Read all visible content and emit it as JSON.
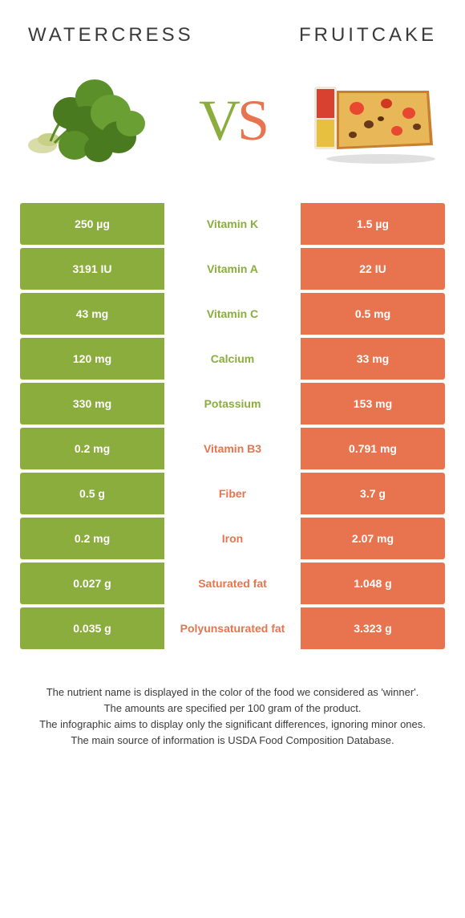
{
  "colors": {
    "left_bg": "#8aad3e",
    "right_bg": "#e8744f",
    "left_text": "#8aad3e",
    "right_text": "#e8744f",
    "header_text": "#3a3a3a",
    "footer_text": "#3a3a3a",
    "cell_text": "#ffffff"
  },
  "header": {
    "left": "WATERCRESS",
    "right": "FRUITCAKE"
  },
  "vs": {
    "v": "V",
    "s": "S"
  },
  "rows": [
    {
      "left": "250 µg",
      "mid": "Vitamin K",
      "right": "1.5 µg",
      "winner": "left"
    },
    {
      "left": "3191 IU",
      "mid": "Vitamin A",
      "right": "22 IU",
      "winner": "left"
    },
    {
      "left": "43 mg",
      "mid": "Vitamin C",
      "right": "0.5 mg",
      "winner": "left"
    },
    {
      "left": "120 mg",
      "mid": "Calcium",
      "right": "33 mg",
      "winner": "left"
    },
    {
      "left": "330 mg",
      "mid": "Potassium",
      "right": "153 mg",
      "winner": "left"
    },
    {
      "left": "0.2 mg",
      "mid": "Vitamin B3",
      "right": "0.791 mg",
      "winner": "right"
    },
    {
      "left": "0.5 g",
      "mid": "Fiber",
      "right": "3.7 g",
      "winner": "right"
    },
    {
      "left": "0.2 mg",
      "mid": "Iron",
      "right": "2.07 mg",
      "winner": "right"
    },
    {
      "left": "0.027 g",
      "mid": "Saturated fat",
      "right": "1.048 g",
      "winner": "right"
    },
    {
      "left": "0.035 g",
      "mid": "Polyunsaturated fat",
      "right": "3.323 g",
      "winner": "right"
    }
  ],
  "footer": {
    "l1": "The nutrient name is displayed in the color of the food we considered as 'winner'.",
    "l2": "The amounts are specified per 100 gram of the product.",
    "l3": "The infographic aims to display only the significant differences, ignoring minor ones.",
    "l4": "The main source of information is USDA Food Composition Database."
  }
}
